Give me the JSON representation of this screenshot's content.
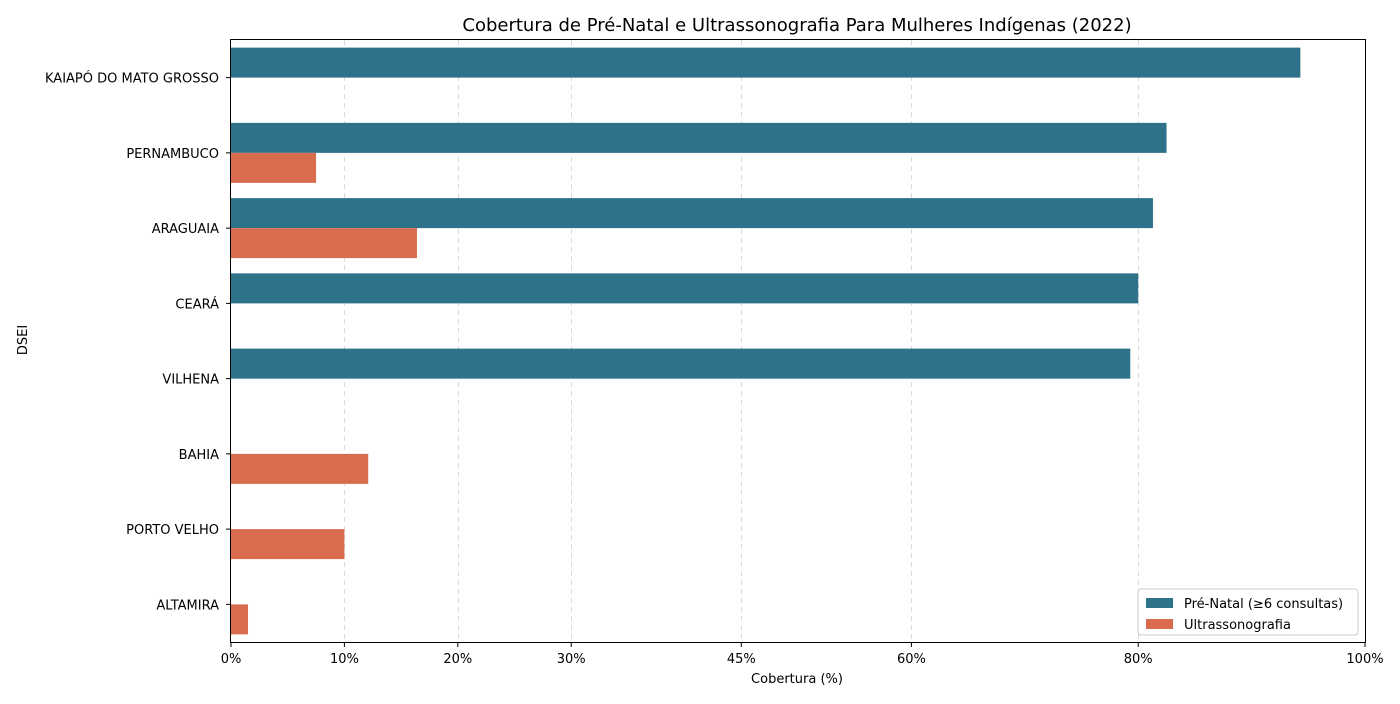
{
  "chart_data": {
    "type": "bar",
    "orientation": "horizontal",
    "title": "Cobertura de Pré-Natal e Ultrassonografia Para Mulheres Indígenas (2022)",
    "xlabel": "Cobertura (%)",
    "ylabel": "DSEI",
    "xlim": [
      0,
      100
    ],
    "xticks": [
      0,
      10,
      20,
      30,
      45,
      60,
      80,
      100
    ],
    "xtick_labels": [
      "0%",
      "10%",
      "20%",
      "30%",
      "45%",
      "60%",
      "80%",
      "100%"
    ],
    "grid": "vertical dashed",
    "legend_position": "bottom-right",
    "categories": [
      "KAIAPÓ DO MATO GROSSO",
      "PERNAMBUCO",
      "ARAGUAIA",
      "CEARÁ",
      "VILHENA",
      "BAHIA",
      "PORTO VELHO",
      "ALTAMIRA"
    ],
    "series": [
      {
        "name": "Pré-Natal (≥6 consultas)",
        "color": "#2e728a",
        "values": [
          94.3,
          82.5,
          81.3,
          80.0,
          79.3,
          null,
          null,
          null
        ]
      },
      {
        "name": "Ultrassonografia",
        "color": "#d96c4f",
        "values": [
          null,
          7.5,
          16.4,
          null,
          null,
          12.1,
          10.0,
          1.5
        ]
      }
    ]
  }
}
